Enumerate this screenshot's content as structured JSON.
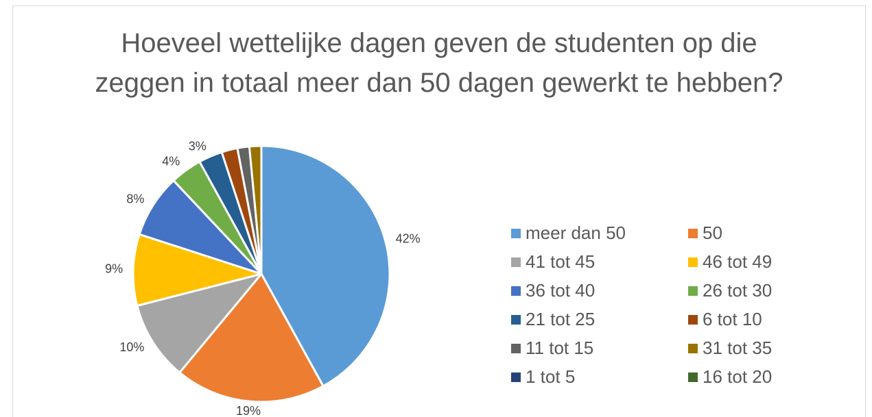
{
  "chart_data": {
    "type": "pie",
    "title": "Hoeveel wettelijke dagen geven de studenten op die zeggen in totaal meer dan 50 dagen gewerkt te hebben?",
    "categories": [
      "meer dan 50",
      "50",
      "41 tot 45",
      "46 tot 49",
      "36 tot 40",
      "26 tot 30",
      "21 tot 25",
      "6 tot 10",
      "11 tot 15",
      "31 tot 35",
      "1 tot 5",
      "16 tot 20"
    ],
    "values": [
      42,
      19,
      10,
      9,
      8,
      4,
      3,
      2,
      1.5,
      1.5,
      0,
      0
    ],
    "value_labels": [
      "42%",
      "19%",
      "10%",
      "9%",
      "8%",
      "4%",
      "3%",
      null,
      null,
      null,
      null,
      null
    ],
    "colors": [
      "#5b9bd5",
      "#ed7d31",
      "#a5a5a5",
      "#ffc000",
      "#4472c4",
      "#70ad47",
      "#255e91",
      "#9e480e",
      "#636363",
      "#997300",
      "#264478",
      "#43682b"
    ],
    "legend": "right"
  }
}
